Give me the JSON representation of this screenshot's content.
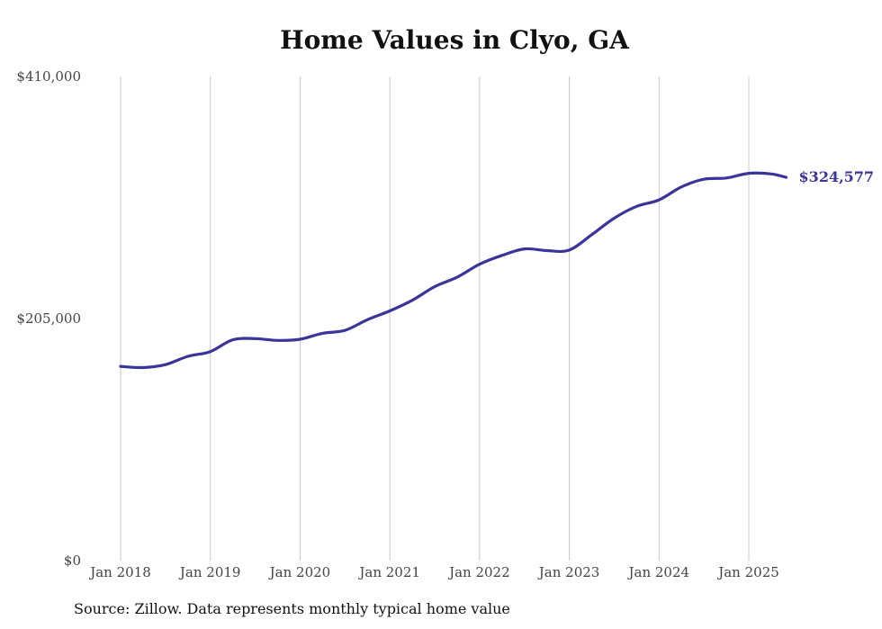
{
  "colors": {
    "line": "#3a3599",
    "grid": "#c8c8c8",
    "text": "#444444"
  },
  "source": "Source: Zillow. Data represents monthly typical home value",
  "chart_data": {
    "type": "line",
    "title": "Home Values in Clyo, GA",
    "xlabel": "",
    "ylabel": "",
    "ylim": [
      0,
      410000
    ],
    "yticks": [
      0,
      205000,
      410000
    ],
    "ytick_labels": [
      "$0",
      "$205,000",
      "$410,000"
    ],
    "xticks": [
      "2018-01",
      "2019-01",
      "2020-01",
      "2021-01",
      "2022-01",
      "2023-01",
      "2024-01",
      "2025-01"
    ],
    "xtick_labels": [
      "Jan 2018",
      "Jan 2019",
      "Jan 2020",
      "Jan 2021",
      "Jan 2022",
      "Jan 2023",
      "Jan 2024",
      "Jan 2025"
    ],
    "x_range": [
      "2017-12",
      "2025-09"
    ],
    "grid": "vertical",
    "end_label": "$324,577",
    "series": [
      {
        "x": [
          "2018-01",
          "2018-04",
          "2018-07",
          "2018-10",
          "2019-01",
          "2019-04",
          "2019-07",
          "2019-10",
          "2020-01",
          "2020-04",
          "2020-07",
          "2020-10",
          "2021-01",
          "2021-04",
          "2021-07",
          "2021-10",
          "2022-01",
          "2022-04",
          "2022-07",
          "2022-10",
          "2023-01",
          "2023-04",
          "2023-07",
          "2023-10",
          "2024-01",
          "2024-04",
          "2024-07",
          "2024-10",
          "2025-01",
          "2025-04",
          "2025-06"
        ],
        "values": [
          164500,
          163500,
          166000,
          173000,
          177000,
          187000,
          188000,
          186500,
          187500,
          192500,
          195000,
          204000,
          211500,
          220500,
          232000,
          240000,
          251000,
          258500,
          264000,
          262500,
          263000,
          276000,
          290000,
          300000,
          305500,
          316500,
          323000,
          324000,
          328000,
          327500,
          324577
        ]
      }
    ]
  }
}
